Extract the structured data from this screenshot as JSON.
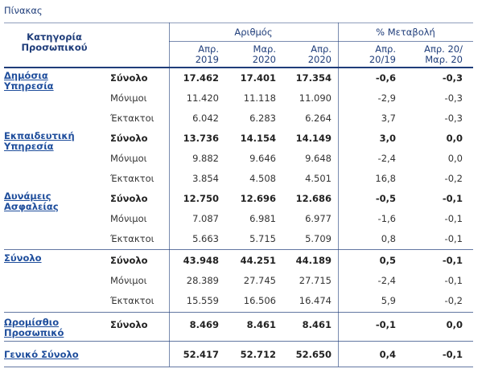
{
  "header": {
    "title": "Πίνακας"
  },
  "table": {
    "category_header": "Κατηγορία\nΠροσωπικού",
    "group_headers": [
      "Αριθμός",
      "% Μεταβολή"
    ],
    "column_headers": [
      "Απρ.\n2019",
      "Μαρ.\n2020",
      "Απρ.\n2020",
      "Απρ.\n20/19",
      "Απρ. 20/\nΜαρ. 20"
    ],
    "groups": [
      {
        "label": "Δημόσια\nΥπηρεσία",
        "rows": [
          [
            "Σύνολο",
            "17.462",
            "17.401",
            "17.354",
            "-0,6",
            "-0,3"
          ],
          [
            "Μόνιμοι",
            "11.420",
            "11.118",
            "11.090",
            "-2,9",
            "-0,3"
          ],
          [
            "Έκτακτοι",
            "6.042",
            "6.283",
            "6.264",
            "3,7",
            "-0,3"
          ]
        ]
      },
      {
        "label": "Εκπαιδευτική\nΥπηρεσία",
        "rows": [
          [
            "Σύνολο",
            "13.736",
            "14.154",
            "14.149",
            "3,0",
            "0,0"
          ],
          [
            "Μόνιμοι",
            "9.882",
            "9.646",
            "9.648",
            "-2,4",
            "0,0"
          ],
          [
            "Έκτακτοι",
            "3.854",
            "4.508",
            "4.501",
            "16,8",
            "-0,2"
          ]
        ]
      },
      {
        "label": "Δυνάμεις\nΑσφαλείας",
        "rows": [
          [
            "Σύνολο",
            "12.750",
            "12.696",
            "12.686",
            "-0,5",
            "-0,1"
          ],
          [
            "Μόνιμοι",
            "7.087",
            "6.981",
            "6.977",
            "-1,6",
            "-0,1"
          ],
          [
            "Έκτακτοι",
            "5.663",
            "5.715",
            "5.709",
            "0,8",
            "-0,1"
          ]
        ]
      },
      {
        "label": "Σύνολο",
        "rows": [
          [
            "Σύνολο",
            "43.948",
            "44.251",
            "44.189",
            "0,5",
            "-0,1"
          ],
          [
            "Μόνιμοι",
            "28.389",
            "27.745",
            "27.715",
            "-2,4",
            "-0,1"
          ],
          [
            "Έκτακτοι",
            "15.559",
            "16.506",
            "16.474",
            "5,9",
            "-0,2"
          ]
        ]
      },
      {
        "label": "Ωρομίσθιο\nΠροσωπικό",
        "rows": [
          [
            "Σύνολο",
            "8.469",
            "8.461",
            "8.461",
            "-0,1",
            "0,0"
          ]
        ]
      },
      {
        "label": "Γενικό Σύνολο",
        "rows": [
          [
            null,
            "52.417",
            "52.712",
            "52.650",
            "0,4",
            "-0,1"
          ]
        ]
      }
    ]
  }
}
